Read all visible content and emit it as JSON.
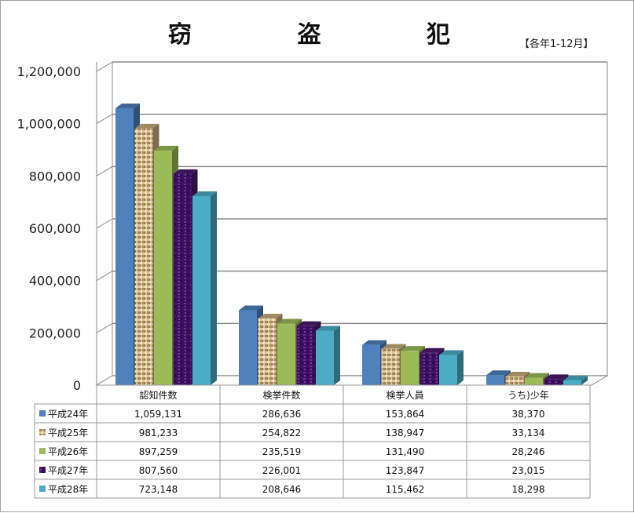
{
  "chart_data": {
    "type": "bar",
    "title": "窃 盗 犯",
    "period_note": "【各年1-12月】",
    "categories": [
      "認知件数",
      "検挙件数",
      "検挙人員",
      "うち)少年"
    ],
    "series": [
      {
        "name": "平成24年",
        "values": [
          1059131,
          286636,
          153864,
          38370
        ],
        "labels": [
          "1,059,131",
          "286,636",
          "153,864",
          "38,370"
        ],
        "color": "#4f81bd",
        "pattern": "solid"
      },
      {
        "name": "平成25年",
        "values": [
          981233,
          254822,
          138947,
          33134
        ],
        "labels": [
          "981,233",
          "254,822",
          "138,947",
          "33,134"
        ],
        "color": "#c8ad7f",
        "pattern": "burlap"
      },
      {
        "name": "平成26年",
        "values": [
          897259,
          235519,
          131490,
          28246
        ],
        "labels": [
          "897,259",
          "235,519",
          "131,490",
          "28,246"
        ],
        "color": "#9bbb59",
        "pattern": "solid"
      },
      {
        "name": "平成27年",
        "values": [
          807560,
          226001,
          123847,
          23015
        ],
        "labels": [
          "807,560",
          "226,001",
          "123,847",
          "23,015"
        ],
        "color": "#4b1a6e",
        "pattern": "mottled"
      },
      {
        "name": "平成28年",
        "values": [
          723148,
          208646,
          115462,
          18298
        ],
        "labels": [
          "723,148",
          "208,646",
          "115,462",
          "18,298"
        ],
        "color": "#4bacc6",
        "pattern": "solid"
      }
    ],
    "ylim": [
      0,
      1200000
    ],
    "yticks": [
      0,
      200000,
      400000,
      600000,
      800000,
      1000000,
      1200000
    ],
    "ytick_labels": [
      "0",
      "200,000",
      "400,000",
      "600,000",
      "800,000",
      "1,000,000",
      "1,200,000"
    ],
    "grid": true,
    "style": "3d-clustered-column-with-data-table"
  }
}
